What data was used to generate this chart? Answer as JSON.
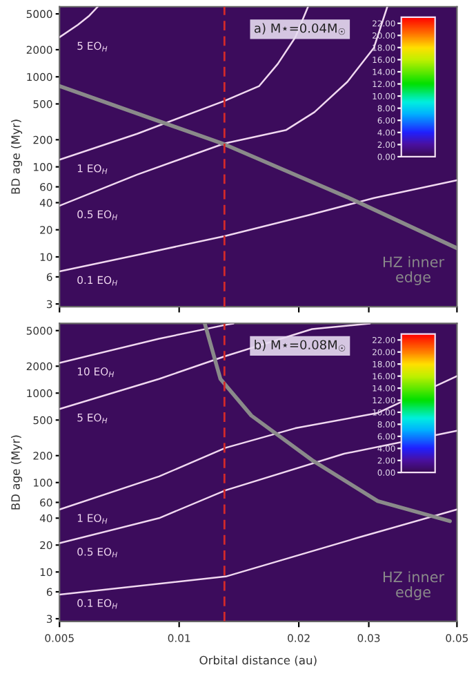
{
  "chart_data": [
    {
      "type": "line",
      "ylabel": "BD age (Myr)",
      "annotations": [
        "a) M⋆=0.04M$_{☉}$"
      ],
      "log": "xy",
      "tick_labels": "y",
      "xlim": [
        0.005,
        0.05
      ],
      "xticks": [
        0.005,
        0.01,
        0.02,
        0.03,
        0.05
      ],
      "ylim": [
        2.8,
        6000
      ],
      "yticks": [
        3,
        6,
        10,
        20,
        40,
        60,
        100,
        200,
        500,
        1000,
        2000,
        5000
      ],
      "clim": [
        0,
        23
      ],
      "cticks": [
        {
          "value": 0,
          "label": "0.00"
        },
        {
          "value": 2,
          "label": "2.00"
        },
        {
          "value": 4,
          "label": "4.00"
        },
        {
          "value": 6,
          "label": "6.00"
        },
        {
          "value": 8,
          "label": "8.00"
        },
        {
          "value": 10,
          "label": "10.00"
        },
        {
          "value": 12,
          "label": "12.00"
        },
        {
          "value": 14,
          "label": "14.00"
        },
        {
          "value": 16,
          "label": "16.00"
        },
        {
          "value": 18,
          "label": "18.00"
        },
        {
          "value": 20,
          "label": "20.00"
        },
        {
          "value": 22,
          "label": "22.00"
        }
      ],
      "ref_lines": [
        {
          "axis": "x",
          "value": 0.013,
          "color": "#d42a2a",
          "line_style": "dashed"
        }
      ],
      "series": [
        {
          "type": "line",
          "name": "5 EO$_{H}$",
          "color": "#f0d8f0",
          "x": [
            0.005,
            0.00556,
            0.00592,
            0.00624
          ],
          "values": [
            2750,
            3780,
            4700,
            6000
          ]
        },
        {
          "type": "line",
          "name": "1 EO$_{H}$",
          "color": "#f0d8f0",
          "x": [
            0.005,
            0.00784,
            0.013,
            0.0159,
            0.0177,
            0.0196,
            0.0211
          ],
          "values": [
            120,
            233,
            540,
            790,
            1390,
            2750,
            6000
          ]
        },
        {
          "type": "line",
          "name": "0.5 EO$_{H}$",
          "color": "#f0d8f0",
          "x": [
            0.005,
            0.00784,
            0.013,
            0.0186,
            0.0219,
            0.0265,
            0.0309,
            0.0334
          ],
          "values": [
            37,
            82,
            182,
            257,
            405,
            880,
            2100,
            6000
          ]
        },
        {
          "type": "line",
          "name": "0.1 EO$_{H}$",
          "color": "#f0d8f0",
          "x": [
            0.005,
            0.00784,
            0.013,
            0.0211,
            0.0309,
            0.05
          ],
          "values": [
            6.9,
            10.5,
            17,
            29,
            45,
            71
          ]
        },
        {
          "type": "line",
          "name": "HZ inner edge",
          "color": "#8a8a8a",
          "x": [
            0.005,
            0.013,
            0.0265,
            0.05
          ],
          "values": [
            790,
            178,
            46,
            12.5
          ]
        }
      ]
    },
    {
      "type": "line",
      "ylabel": "BD age (Myr)",
      "xlabel": "Orbital distance (au)",
      "annotations": [
        "b) M⋆=0.08M$_{☉}$"
      ],
      "log": "xy",
      "xlim": [
        0.005,
        0.05
      ],
      "xticks": [
        0.005,
        0.01,
        0.02,
        0.03,
        0.05
      ],
      "ylim": [
        2.8,
        6000
      ],
      "yticks": [
        3,
        6,
        10,
        20,
        40,
        60,
        100,
        200,
        500,
        1000,
        2000,
        5000
      ],
      "clim": [
        0,
        23
      ],
      "cticks": [
        {
          "value": 0,
          "label": "0.00"
        },
        {
          "value": 2,
          "label": "2.00"
        },
        {
          "value": 4,
          "label": "4.00"
        },
        {
          "value": 6,
          "label": "6.00"
        },
        {
          "value": 8,
          "label": "8.00"
        },
        {
          "value": 10,
          "label": "10.00"
        },
        {
          "value": 12,
          "label": "12.00"
        },
        {
          "value": 14,
          "label": "14.00"
        },
        {
          "value": 16,
          "label": "16.00"
        },
        {
          "value": 18,
          "label": "18.00"
        },
        {
          "value": 20,
          "label": "20.00"
        },
        {
          "value": 22,
          "label": "22.00"
        }
      ],
      "ref_lines": [
        {
          "axis": "x",
          "value": 0.013,
          "color": "#d42a2a",
          "line_style": "dashed"
        }
      ],
      "series": [
        {
          "type": "line",
          "name": "10 EO$_{H}$",
          "color": "#f0d8f0",
          "x": [
            0.005,
            0.0089,
            0.0131,
            0.0137
          ],
          "values": [
            2180,
            4060,
            5800,
            6000
          ]
        },
        {
          "type": "line",
          "name": "5 EO$_{H}$",
          "color": "#f0d8f0",
          "x": [
            0.005,
            0.0089,
            0.0131,
            0.0216,
            0.0302
          ],
          "values": [
            665,
            1440,
            2600,
            5200,
            6000
          ]
        },
        {
          "type": "line",
          "name": "1 EO$_{H}$",
          "color": "#f0d8f0",
          "x": [
            0.005,
            0.0089,
            0.0131,
            0.0196,
            0.0316,
            0.05
          ],
          "values": [
            50,
            117,
            245,
            405,
            600,
            1550
          ]
        },
        {
          "type": "line",
          "name": "0.5 EO$_{H}$",
          "color": "#f0d8f0",
          "x": [
            0.005,
            0.0089,
            0.0131,
            0.026,
            0.05
          ],
          "values": [
            21,
            40,
            82,
            210,
            380
          ]
        },
        {
          "type": "line",
          "name": "0.1 EO$_{H}$",
          "color": "#f0d8f0",
          "x": [
            0.005,
            0.0131,
            0.028,
            0.05
          ],
          "values": [
            5.6,
            8.9,
            24,
            50
          ]
        },
        {
          "type": "line",
          "name": "HZ inner edge",
          "color": "#8a8a8a",
          "x": [
            0.0116,
            0.0127,
            0.0152,
            0.0216,
            0.0316,
            0.048
          ],
          "values": [
            6000,
            1440,
            560,
            178,
            62,
            37
          ]
        }
      ]
    }
  ]
}
